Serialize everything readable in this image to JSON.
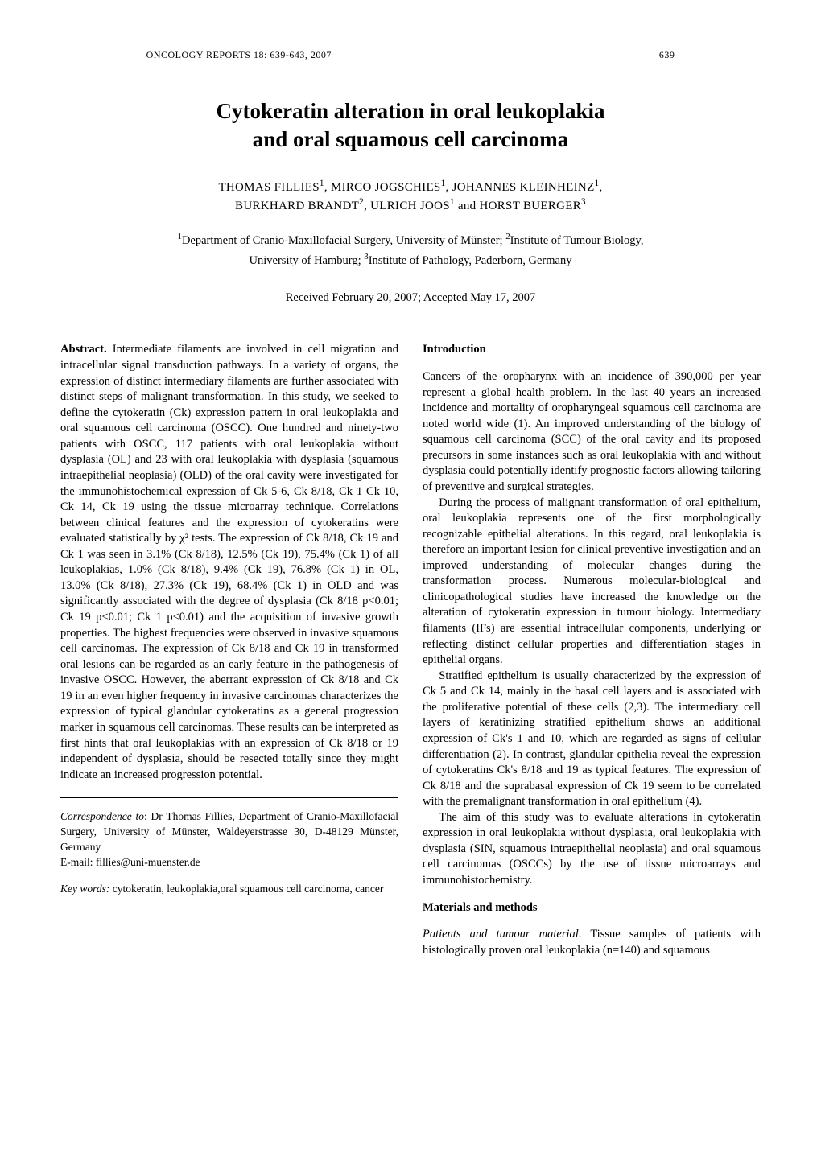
{
  "running_head": "ONCOLOGY REPORTS  18:  639-643,  2007",
  "page_start_number": "639",
  "title_line1": "Cytokeratin alteration in oral leukoplakia",
  "title_line2": "and oral squamous cell carcinoma",
  "authors_html": "THOMAS FILLIES<sup>1</sup>,  MIRCO JOGSCHIES<sup>1</sup>,  JOHANNES KLEINHEINZ<sup>1</sup>,<br>BURKHARD BRANDT<sup>2</sup>,  ULRICH JOOS<sup>1</sup>  and  HORST BUERGER<sup>3</sup>",
  "affiliations_html": "<sup>1</sup>Department of Cranio-Maxillofacial Surgery, University of Münster;  <sup>2</sup>Institute of Tumour Biology,<br>University of Hamburg;  <sup>3</sup>Institute of Pathology, Paderborn, Germany",
  "received": "Received February 20, 2007;  Accepted May 17, 2007",
  "abstract_label": "Abstract.",
  "abstract_text": " Intermediate filaments are involved in cell migration and intracellular signal transduction pathways. In a variety of organs, the expression of distinct intermediary filaments are further associated with distinct steps of malignant transformation. In this study, we seeked to define the cytokeratin (Ck) expression pattern in oral leukoplakia and oral squamous cell carcinoma (OSCC). One hundred and ninety-two patients with OSCC, 117 patients with oral leukoplakia without dysplasia (OL) and 23 with oral leukoplakia with dysplasia (squamous intraepithelial neoplasia) (OLD) of the oral cavity were investigated for the immunohistochemical expression of Ck 5-6, Ck 8/18, Ck 1 Ck 10, Ck 14, Ck 19 using the tissue microarray technique. Correlations between clinical features and the expression of cytokeratins were evaluated statistically by χ² tests. The expression of Ck 8/18, Ck 19 and Ck 1 was seen in 3.1% (Ck 8/18), 12.5% (Ck 19), 75.4% (Ck 1) of all leukoplakias, 1.0% (Ck 8/18), 9.4% (Ck 19), 76.8% (Ck 1) in OL, 13.0% (Ck 8/18), 27.3% (Ck 19), 68.4% (Ck 1) in OLD and was significantly associated with the degree of dysplasia (Ck 8/18 p<0.01; Ck 19 p<0.01; Ck 1 p<0.01) and the acquisition of invasive growth properties. The highest frequencies were observed in invasive squamous cell carcinomas. The expression of Ck 8/18 and Ck 19 in transformed oral lesions can be regarded as an early feature in the pathogenesis of invasive OSCC. However, the aberrant expression of Ck 8/18 and Ck 19 in an even higher frequency in invasive carcinomas characterizes the expression of typical glandular cytokeratins as a general progression marker in squamous cell carcinomas. These results can be interpreted as first hints that oral leukoplakias with an expression of Ck 8/18 or 19 independent of dysplasia, should be resected totally since they might indicate an increased progression potential.",
  "correspondence_label": "Correspondence to",
  "correspondence_text": ": Dr Thomas Fillies, Department of Cranio-Maxillofacial Surgery, University of Münster, Waldeyerstrasse 30, D-48129 Münster, Germany",
  "correspondence_email_label": "E-mail: ",
  "correspondence_email": "fillies@uni-muenster.de",
  "keywords_label": "Key words:",
  "keywords_text": " cytokeratin, leukoplakia,oral squamous cell carcinoma, cancer",
  "intro_head": "Introduction",
  "intro_p1": "Cancers of the oropharynx with an incidence of 390,000 per year represent a global health problem. In the last 40 years an increased incidence and mortality of oropharyngeal squamous cell carcinoma are noted world wide (1). An improved understanding of the biology of squamous cell carcinoma (SCC) of the oral cavity and its proposed precursors in some instances such as oral leukoplakia with and without dysplasia could potentially identify prognostic factors allowing tailoring of preventive and surgical strategies.",
  "intro_p2": "During the process of malignant transformation of oral epithelium, oral leukoplakia represents one of the first morphologically recognizable epithelial alterations. In this regard, oral leukoplakia is therefore an important lesion for clinical preventive investigation and an improved understanding of molecular changes during the transformation process. Numerous molecular-biological and clinicopathological studies have increased the knowledge on the alteration of cytokeratin expression in tumour biology. Intermediary filaments (IFs) are essential intracellular components, underlying or reflecting distinct cellular properties and differentiation stages in epithelial organs.",
  "intro_p3": "Stratified epithelium is usually characterized by the expression of Ck 5 and Ck 14, mainly in the basal cell layers and is associated with the proliferative potential of these cells (2,3). The intermediary cell layers of keratinizing stratified epithelium shows an additional expression of Ck's 1 and 10, which are regarded as signs of cellular differentiation (2). In contrast, glandular epithelia reveal the expression of cytokeratins Ck's 8/18 and 19 as typical features. The expression of Ck 8/18 and the suprabasal expression of Ck 19 seem to be correlated with the premalignant transformation in oral epithelium (4).",
  "intro_p4": "The aim of this study was to evaluate alterations in cytokeratin expression in oral leukoplakia without dysplasia, oral leukoplakia with dysplasia (SIN, squamous intraepithelial neoplasia) and oral squamous cell carcinomas (OSCCs) by the use of tissue microarrays and immunohistochemistry.",
  "mm_head": "Materials and methods",
  "mm_p1_label": "Patients and tumour material",
  "mm_p1_text": ". Tissue samples of patients with histologically proven oral leukoplakia (n=140) and squamous"
}
